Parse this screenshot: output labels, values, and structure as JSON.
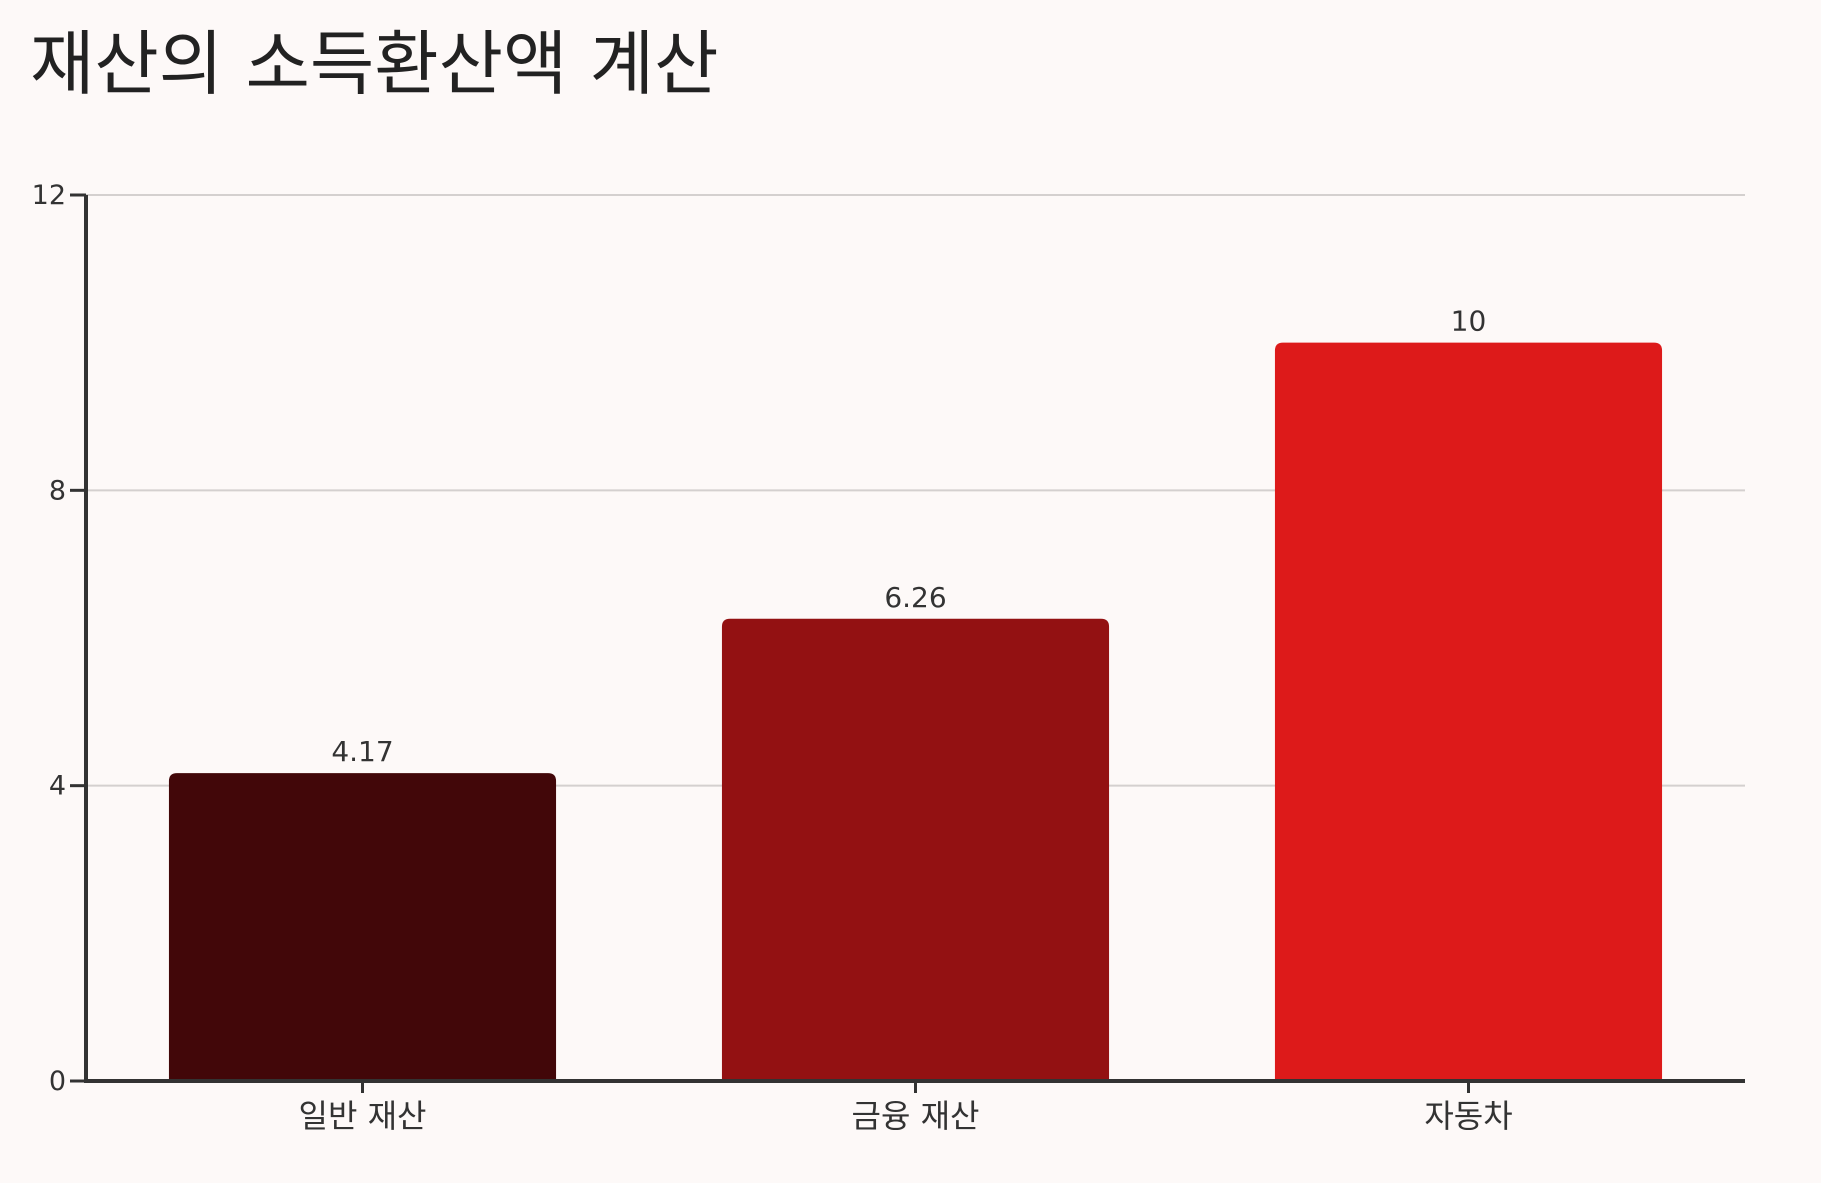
{
  "chart_data": {
    "type": "bar",
    "title": "재산의 소득환산액 계산",
    "xlabel": "",
    "ylabel": "",
    "categories": [
      "일반 재산",
      "금융 재산",
      "자동차"
    ],
    "values": [
      4.17,
      6.26,
      10
    ],
    "data_labels": [
      "4.17",
      "6.26",
      "10"
    ],
    "colors": [
      "#420709",
      "#931112",
      "#dd1a1a"
    ],
    "ylim": [
      0,
      12
    ],
    "yticks": [
      0,
      4,
      8,
      12
    ],
    "ytick_labels": [
      "0",
      "4",
      "8",
      "12"
    ],
    "grid": true,
    "legend": "none"
  },
  "style": {
    "background": "#fdf9f8",
    "axis_color": "#333333",
    "grid_color": "#d4d0cf"
  }
}
